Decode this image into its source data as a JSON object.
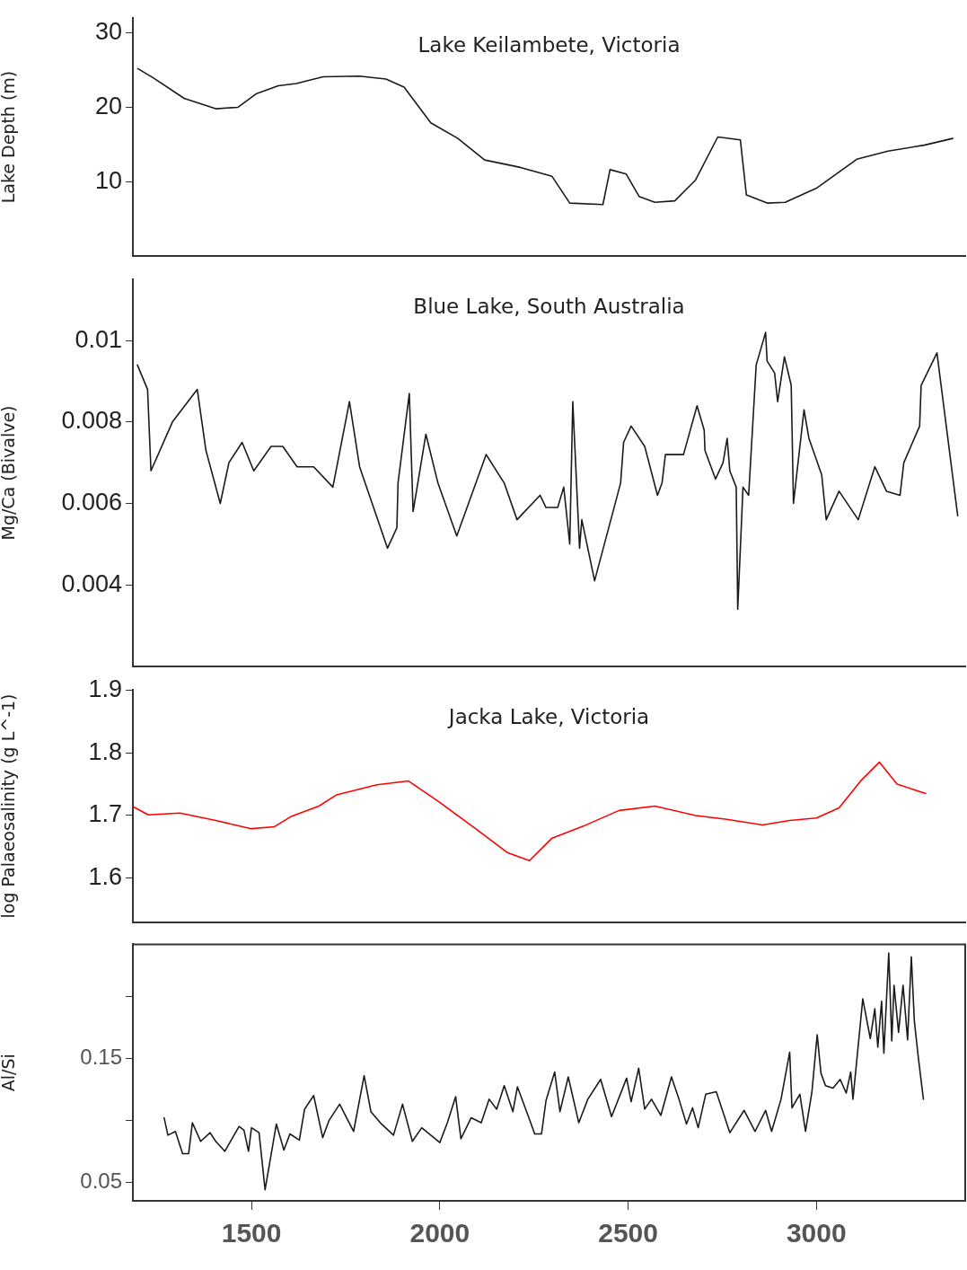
{
  "chart_data": [
    {
      "type": "line",
      "title": "Lake Keilambete, Victoria",
      "ylabel": "Lake Depth (m)",
      "marker": "none",
      "line_style": "solid",
      "tick_labels": "y",
      "xlim": [
        1185,
        3395
      ],
      "ylim": [
        0,
        32
      ],
      "yticks": [
        10,
        20,
        30
      ],
      "series": [
        {
          "color": "#1a1a1a",
          "x": [
            1198,
            1238,
            1321,
            1405,
            1464,
            1512,
            1571,
            1619,
            1690,
            1786,
            1857,
            1905,
            1976,
            2048,
            2119,
            2214,
            2298,
            2345,
            2433,
            2452,
            2495,
            2529,
            2571,
            2624,
            2679,
            2738,
            2798,
            2814,
            2869,
            2917,
            3000,
            3107,
            3190,
            3286,
            3362
          ],
          "values": [
            25.2,
            24,
            21.2,
            19.8,
            20,
            21.8,
            22.9,
            23.2,
            24.1,
            24.2,
            23.8,
            22.7,
            17.9,
            15.8,
            12.9,
            11.9,
            10.7,
            7.1,
            6.9,
            11.6,
            11,
            8,
            7.2,
            7.4,
            10.2,
            16,
            15.6,
            8.2,
            7.1,
            7.2,
            9.1,
            13,
            14.1,
            14.9,
            15.8
          ]
        }
      ]
    },
    {
      "type": "line",
      "title": "Blue Lake, South Australia",
      "ylabel": "Mg/Ca (Bivalve)",
      "marker": "none",
      "line_style": "solid",
      "tick_labels": "y",
      "xlim": [
        1185,
        3395
      ],
      "ylim": [
        0.002,
        0.0115
      ],
      "yticks": [
        0.004,
        0.006,
        0.008,
        0.01
      ],
      "series": [
        {
          "color": "#1a1a1a",
          "x": [
            1197,
            1224,
            1233,
            1290,
            1356,
            1379,
            1417,
            1440,
            1475,
            1506,
            1552,
            1583,
            1621,
            1665,
            1716,
            1760,
            1787,
            1861,
            1886,
            1889,
            1919,
            1929,
            1963,
            1995,
            2045,
            2123,
            2171,
            2205,
            2266,
            2282,
            2313,
            2329,
            2345,
            2353,
            2371,
            2377,
            2411,
            2480,
            2488,
            2508,
            2544,
            2578,
            2590,
            2599,
            2647,
            2683,
            2702,
            2704,
            2732,
            2752,
            2763,
            2770,
            2787,
            2791,
            2805,
            2820,
            2840,
            2865,
            2869,
            2889,
            2897,
            2915,
            2933,
            2939,
            2967,
            2980,
            3014,
            3026,
            3060,
            3111,
            3155,
            3186,
            3222,
            3232,
            3274,
            3278,
            3320,
            3375
          ],
          "values": [
            0.0094,
            0.0088,
            0.0068,
            0.008,
            0.0088,
            0.0073,
            0.006,
            0.007,
            0.0075,
            0.0068,
            0.0074,
            0.0074,
            0.0069,
            0.0069,
            0.0064,
            0.0085,
            0.0069,
            0.0049,
            0.0054,
            0.0065,
            0.0087,
            0.0058,
            0.0077,
            0.0065,
            0.0052,
            0.0072,
            0.0065,
            0.0056,
            0.0062,
            0.0059,
            0.0059,
            0.0064,
            0.005,
            0.0085,
            0.0049,
            0.0056,
            0.0041,
            0.0065,
            0.0075,
            0.0079,
            0.0074,
            0.0062,
            0.0065,
            0.0072,
            0.0072,
            0.0084,
            0.0078,
            0.0073,
            0.0066,
            0.007,
            0.0076,
            0.0068,
            0.0064,
            0.0034,
            0.0064,
            0.0062,
            0.0094,
            0.0102,
            0.0095,
            0.0092,
            0.0085,
            0.0096,
            0.0089,
            0.006,
            0.0083,
            0.0076,
            0.0067,
            0.0056,
            0.0063,
            0.0056,
            0.0069,
            0.0063,
            0.0062,
            0.007,
            0.0079,
            0.0089,
            0.0097,
            0.0057
          ]
        }
      ]
    },
    {
      "type": "line",
      "title": "Jacka Lake, Victoria",
      "ylabel": "log Palaeosalinity (g L^-1)",
      "marker": "none",
      "line_style": "solid",
      "tick_labels": "y",
      "xlim": [
        1185,
        3395
      ],
      "ylim": [
        1.53,
        1.9
      ],
      "yticks": [
        1.6,
        1.7,
        1.8,
        1.9
      ],
      "series": [
        {
          "color": "#ff0000",
          "x": [
            1186,
            1226,
            1310,
            1405,
            1500,
            1560,
            1607,
            1679,
            1726,
            1833,
            1917,
            2000,
            2095,
            2179,
            2238,
            2298,
            2381,
            2476,
            2571,
            2679,
            2762,
            2857,
            2929,
            3000,
            3060,
            3119,
            3167,
            3214,
            3290
          ],
          "values": [
            1.714,
            1.701,
            1.704,
            1.692,
            1.679,
            1.682,
            1.699,
            1.715,
            1.733,
            1.749,
            1.755,
            1.721,
            1.679,
            1.641,
            1.628,
            1.664,
            1.683,
            1.708,
            1.715,
            1.7,
            1.694,
            1.685,
            1.692,
            1.696,
            1.712,
            1.756,
            1.785,
            1.75,
            1.735
          ]
        }
      ]
    },
    {
      "type": "line",
      "ylabel": "Al/Si",
      "marker": "none",
      "line_style": "solid",
      "xlim": [
        1185,
        3395
      ],
      "xticks": [
        1500,
        2000,
        2500,
        3000
      ],
      "ylim": [
        0.035,
        0.242
      ],
      "yticks": [
        0.05,
        {
          "value": 0.1,
          "label": null
        },
        0.15,
        {
          "value": 0.2,
          "label": null
        }
      ],
      "series": [
        {
          "color": "#1a1a1a",
          "x": [
            1268,
            1278,
            1298,
            1317,
            1333,
            1343,
            1365,
            1390,
            1405,
            1429,
            1467,
            1480,
            1492,
            1500,
            1520,
            1536,
            1566,
            1586,
            1602,
            1627,
            1641,
            1665,
            1689,
            1706,
            1734,
            1771,
            1799,
            1817,
            1845,
            1877,
            1901,
            1927,
            1952,
            2000,
            2020,
            2042,
            2056,
            2083,
            2110,
            2131,
            2151,
            2171,
            2194,
            2206,
            2234,
            2252,
            2270,
            2282,
            2305,
            2319,
            2341,
            2369,
            2393,
            2427,
            2456,
            2496,
            2508,
            2528,
            2544,
            2562,
            2587,
            2615,
            2635,
            2655,
            2671,
            2686,
            2706,
            2734,
            2770,
            2808,
            2837,
            2865,
            2881,
            2906,
            2929,
            2935,
            2956,
            2971,
            2988,
            3002,
            3012,
            3024,
            3044,
            3063,
            3079,
            3091,
            3097,
            3123,
            3143,
            3155,
            3163,
            3173,
            3179,
            3192,
            3200,
            3206,
            3218,
            3230,
            3242,
            3252,
            3260,
            3270,
            3284
          ],
          "values": [
            0.102,
            0.088,
            0.091,
            0.073,
            0.073,
            0.098,
            0.083,
            0.09,
            0.083,
            0.075,
            0.095,
            0.092,
            0.075,
            0.094,
            0.09,
            0.044,
            0.097,
            0.076,
            0.089,
            0.084,
            0.109,
            0.12,
            0.086,
            0.1,
            0.113,
            0.091,
            0.136,
            0.107,
            0.097,
            0.088,
            0.113,
            0.083,
            0.094,
            0.082,
            0.098,
            0.119,
            0.085,
            0.102,
            0.098,
            0.117,
            0.109,
            0.128,
            0.107,
            0.127,
            0.104,
            0.089,
            0.089,
            0.116,
            0.139,
            0.107,
            0.135,
            0.098,
            0.117,
            0.133,
            0.103,
            0.134,
            0.115,
            0.142,
            0.109,
            0.117,
            0.104,
            0.135,
            0.117,
            0.097,
            0.11,
            0.094,
            0.121,
            0.123,
            0.09,
            0.108,
            0.091,
            0.108,
            0.091,
            0.117,
            0.155,
            0.11,
            0.121,
            0.091,
            0.123,
            0.169,
            0.138,
            0.128,
            0.126,
            0.133,
            0.122,
            0.139,
            0.117,
            0.198,
            0.166,
            0.19,
            0.159,
            0.196,
            0.154,
            0.235,
            0.164,
            0.209,
            0.171,
            0.209,
            0.165,
            0.232,
            0.18,
            0.152,
            0.117
          ]
        }
      ]
    }
  ]
}
